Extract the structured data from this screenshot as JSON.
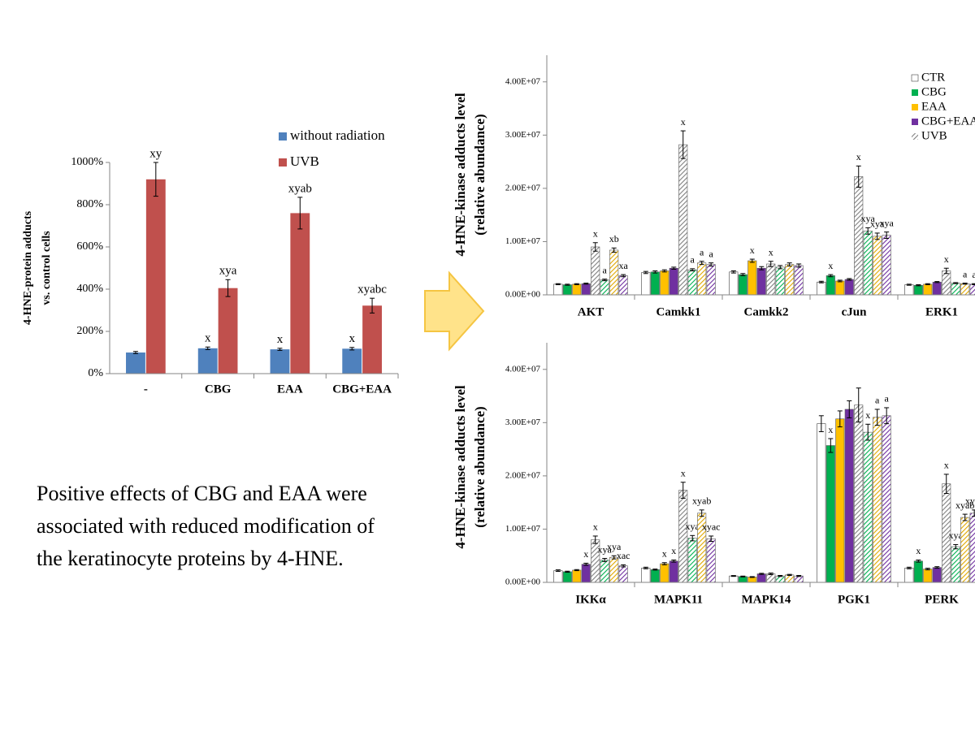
{
  "chart_data": [
    {
      "type": "bar",
      "ylabel": [
        "4-HNE-protein adducts",
        "vs. control cells"
      ],
      "categories": [
        "-",
        "CBG",
        "EAA",
        "CBG+EAA"
      ],
      "series": [
        {
          "name": "without radiation",
          "color": "#4f81bd",
          "values": [
            100,
            120,
            115,
            118
          ],
          "errors": [
            5,
            6,
            5,
            6
          ],
          "annotations": [
            null,
            "x",
            "x",
            "x"
          ]
        },
        {
          "name": "UVB",
          "color": "#c0504d",
          "values": [
            920,
            405,
            760,
            322
          ],
          "errors": [
            80,
            40,
            75,
            35
          ],
          "annotations": [
            "xy",
            "xya",
            "xyab",
            "xyabc"
          ]
        }
      ],
      "ylim": [
        0,
        1000
      ],
      "yticks": [
        {
          "value": 0,
          "label": "0%"
        },
        {
          "value": 200,
          "label": "200%"
        },
        {
          "value": 400,
          "label": "400%"
        },
        {
          "value": 600,
          "label": "600%"
        },
        {
          "value": 800,
          "label": "800%"
        },
        {
          "value": 1000,
          "label": "1000%"
        }
      ],
      "legend": "top-right"
    },
    {
      "type": "bar",
      "ylabel": [
        "4-HNE-kinase adducts level",
        "(relative abundance)"
      ],
      "categories": [
        "AKT",
        "Camkk1",
        "Camkk2",
        "cJun",
        "ERK1"
      ],
      "series": [
        {
          "name": "CTR",
          "color": "#ffffff",
          "values": [
            2000000,
            4200000,
            4300000,
            2400000,
            1900000
          ],
          "errors": [
            100000,
            200000,
            200000,
            150000,
            100000
          ],
          "annotations": [
            null,
            null,
            null,
            null,
            null
          ]
        },
        {
          "name": "CBG",
          "color": "#00b050",
          "values": [
            1900000,
            4300000,
            3800000,
            3600000,
            1800000
          ],
          "errors": [
            100000,
            200000,
            200000,
            200000,
            100000
          ],
          "annotations": [
            null,
            null,
            null,
            "x",
            null
          ]
        },
        {
          "name": "EAA",
          "color": "#ffc000",
          "values": [
            2000000,
            4500000,
            6400000,
            2600000,
            2000000
          ],
          "errors": [
            100000,
            200000,
            300000,
            150000,
            100000
          ],
          "annotations": [
            null,
            null,
            "x",
            null,
            null
          ]
        },
        {
          "name": "CBG+EAA",
          "color": "#7030a0",
          "values": [
            2100000,
            5000000,
            5000000,
            2900000,
            2400000
          ],
          "errors": [
            100000,
            200000,
            300000,
            150000,
            100000
          ],
          "annotations": [
            null,
            null,
            null,
            null,
            null
          ]
        },
        {
          "name": "UVB",
          "color": "#808080",
          "hatch": true,
          "values": [
            9000000,
            28200000,
            5800000,
            22200000,
            4500000
          ],
          "errors": [
            800000,
            2600000,
            500000,
            2000000,
            500000
          ],
          "annotations": [
            "x",
            "x",
            "x",
            "x",
            "x"
          ]
        },
        {
          "color": "#00b050",
          "hatch": true,
          "values": [
            2800000,
            4700000,
            5200000,
            12000000,
            2200000
          ],
          "errors": [
            150000,
            200000,
            300000,
            600000,
            100000
          ],
          "annotations": [
            "a",
            "a",
            null,
            "xya",
            null
          ]
        },
        {
          "color": "#e0a800",
          "hatch": true,
          "values": [
            8400000,
            6000000,
            5700000,
            11000000,
            2100000
          ],
          "errors": [
            400000,
            300000,
            300000,
            600000,
            100000
          ],
          "annotations": [
            "xb",
            "a",
            null,
            "xya",
            "a"
          ]
        },
        {
          "color": "#7030a0",
          "hatch": true,
          "values": [
            3600000,
            5700000,
            5500000,
            11200000,
            2000000
          ],
          "errors": [
            200000,
            300000,
            300000,
            600000,
            100000
          ],
          "annotations": [
            "xa",
            "a",
            null,
            "xya",
            "a"
          ]
        }
      ],
      "ylim": [
        0,
        45000000
      ],
      "yticks": [
        {
          "value": 0,
          "label": "0.00E+00"
        },
        {
          "value": 10000000,
          "label": "1.00E+07"
        },
        {
          "value": 20000000,
          "label": "2.00E+07"
        },
        {
          "value": 30000000,
          "label": "3.00E+07"
        },
        {
          "value": 40000000,
          "label": "4.00E+07"
        }
      ],
      "legend": "top-right"
    },
    {
      "type": "bar",
      "ylabel": [
        "4-HNE-kinase adducts level",
        "(relative abundance)"
      ],
      "categories": [
        "IKKα",
        "MAPK11",
        "MAPK14",
        "PGK1",
        "PERK"
      ],
      "series": [
        {
          "color": "#ffffff",
          "values": [
            2200000,
            2700000,
            1200000,
            29800000,
            2700000
          ],
          "errors": [
            150000,
            150000,
            80000,
            1500000,
            150000
          ],
          "annotations": [
            null,
            null,
            null,
            null,
            null
          ]
        },
        {
          "color": "#00b050",
          "values": [
            2000000,
            2400000,
            1100000,
            25700000,
            4000000
          ],
          "errors": [
            100000,
            100000,
            80000,
            1300000,
            200000
          ],
          "annotations": [
            null,
            null,
            null,
            "x",
            "x"
          ]
        },
        {
          "color": "#ffc000",
          "values": [
            2300000,
            3500000,
            1000000,
            30700000,
            2500000
          ],
          "errors": [
            100000,
            200000,
            80000,
            1500000,
            150000
          ],
          "annotations": [
            null,
            "x",
            null,
            null,
            null
          ]
        },
        {
          "color": "#7030a0",
          "values": [
            3400000,
            4000000,
            1600000,
            32500000,
            2800000
          ],
          "errors": [
            200000,
            200000,
            100000,
            1600000,
            150000
          ],
          "annotations": [
            "x",
            "x",
            null,
            null,
            null
          ]
        },
        {
          "color": "#808080",
          "hatch": true,
          "values": [
            8000000,
            17300000,
            1600000,
            33300000,
            18500000
          ],
          "errors": [
            700000,
            1500000,
            150000,
            3200000,
            1800000
          ],
          "annotations": [
            "x",
            "x",
            null,
            null,
            "x"
          ]
        },
        {
          "color": "#00b050",
          "hatch": true,
          "values": [
            4200000,
            8300000,
            1200000,
            28200000,
            6700000
          ],
          "errors": [
            300000,
            500000,
            100000,
            1500000,
            400000
          ],
          "annotations": [
            "xya",
            "xya",
            null,
            "x",
            "xya"
          ]
        },
        {
          "color": "#e0a800",
          "hatch": true,
          "values": [
            4700000,
            13000000,
            1400000,
            31000000,
            12200000
          ],
          "errors": [
            300000,
            600000,
            100000,
            1500000,
            600000
          ],
          "annotations": [
            "xya",
            "xyab",
            null,
            "a",
            "xyab"
          ]
        },
        {
          "color": "#7030a0",
          "hatch": true,
          "values": [
            3100000,
            8200000,
            1200000,
            31300000,
            13000000
          ],
          "errors": [
            200000,
            500000,
            100000,
            1500000,
            600000
          ],
          "annotations": [
            "xac",
            "xyac",
            null,
            "a",
            "xyac"
          ]
        }
      ],
      "ylim": [
        0,
        45000000
      ],
      "yticks": [
        {
          "value": 0,
          "label": "0.00E+00"
        },
        {
          "value": 10000000,
          "label": "1.00E+07"
        },
        {
          "value": 20000000,
          "label": "2.00E+07"
        },
        {
          "value": 30000000,
          "label": "3.00E+07"
        },
        {
          "value": 40000000,
          "label": "4.00E+07"
        }
      ]
    }
  ],
  "text_block": {
    "lines": [
      "Positive effects of CBG and EAA were",
      "associated with reduced modification of",
      "the keratinocyte proteins by 4-HNE."
    ]
  }
}
